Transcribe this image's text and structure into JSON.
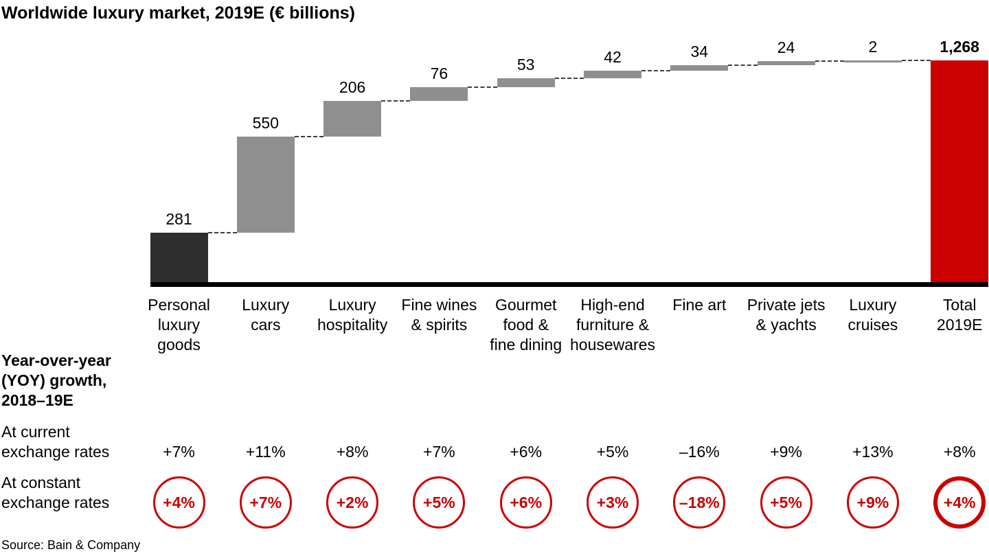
{
  "title": "Worldwide luxury market, 2019E (€ billions)",
  "chart_data": {
    "type": "bar",
    "subtype": "waterfall",
    "title": "Worldwide luxury market, 2019E (€ billions)",
    "unit": "€ billions",
    "axis_max": 1268,
    "grid": false,
    "legend": false,
    "categories": [
      "Personal\nluxury\ngoods",
      "Luxury\ncars",
      "Luxury\nhospitality",
      "Fine wines\n& spirits",
      "Gourmet\nfood &\nfine dining",
      "High-end\nfurniture &\nhousewares",
      "Fine art",
      "Private jets\n& yachts",
      "Luxury\ncruises",
      "Total\n2019E"
    ],
    "values": [
      281,
      550,
      206,
      76,
      53,
      42,
      34,
      24,
      2,
      1268
    ],
    "value_labels": [
      "281",
      "550",
      "206",
      "76",
      "53",
      "42",
      "34",
      "24",
      "2",
      "1,268"
    ],
    "bar_roles": [
      "start",
      "increment",
      "increment",
      "increment",
      "increment",
      "increment",
      "increment",
      "increment",
      "increment",
      "total"
    ],
    "colors": {
      "start": "#2e2e2e",
      "increment": "#8f8f8f",
      "total": "#cc0000",
      "connector": "#3d3d3d",
      "baseline": "#000000"
    }
  },
  "growth_section": {
    "heading": "Year-over-year\n(YOY) growth,\n2018–19E",
    "current_label": "At current\nexchange rates",
    "constant_label": "At constant\nexchange rates",
    "current_rates": [
      "+7%",
      "+11%",
      "+8%",
      "+7%",
      "+6%",
      "+5%",
      "–16%",
      "+9%",
      "+13%",
      "+8%"
    ],
    "constant_rates": [
      "+4%",
      "+7%",
      "+2%",
      "+5%",
      "+6%",
      "+3%",
      "–18%",
      "+5%",
      "+9%",
      "+4%"
    ],
    "emphasized_index": 9,
    "circle_color": "#cc0000"
  },
  "source": "Source: Bain & Company"
}
